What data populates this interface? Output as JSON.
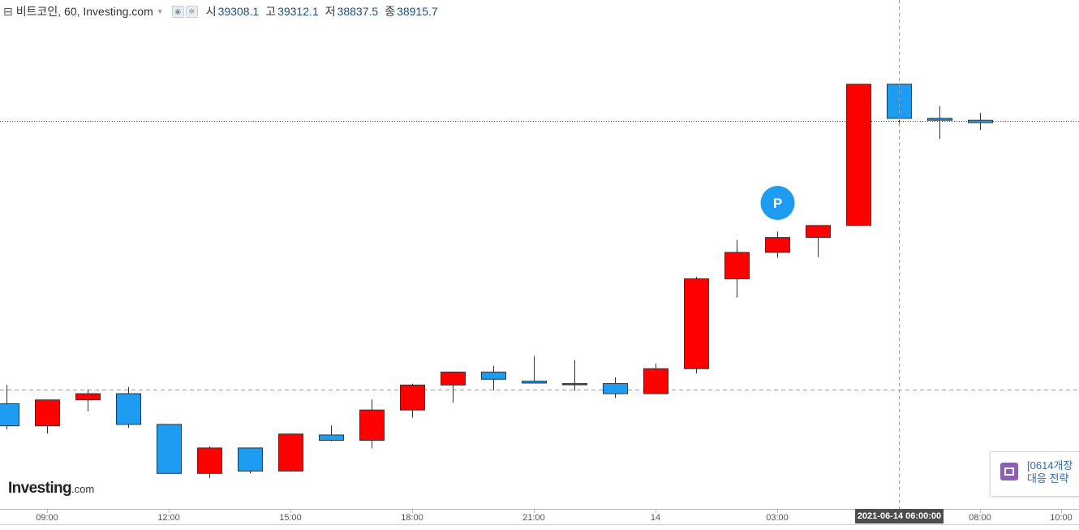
{
  "header": {
    "toggle_icon": "collapse-square-icon",
    "title": "비트코인, 60, Investing.com",
    "ohlc": [
      {
        "label": "시",
        "value": "39308.1"
      },
      {
        "label": "고",
        "value": "39312.1"
      },
      {
        "label": "저",
        "value": "38837.5"
      },
      {
        "label": "종",
        "value": "38915.7"
      }
    ]
  },
  "logo": {
    "brand": "Investing",
    "suffix": ".com"
  },
  "news": {
    "line1": "[0614개장",
    "line2": "대응 전략",
    "icon": "news-icon"
  },
  "crosshair": {
    "time_label": "2021-06-14 06:00:00"
  },
  "marker": {
    "label": "P"
  },
  "colors": {
    "up": "#ff0000",
    "down": "#1e9cf2",
    "wick": "#333333",
    "ref_line": "#1f4f9a",
    "marker_bg": "#1e9cf2"
  },
  "chart_data": {
    "type": "candlestick",
    "title": "비트코인, 60, Investing.com",
    "value_range_relative": [
      0,
      1
    ],
    "note_values": "Values are relative price levels (0 = chart bottom, 1 = chart top); the price axis is not shown in the image.",
    "x_ticks": [
      "09:00",
      "12:00",
      "15:00",
      "18:00",
      "21:00",
      "14",
      "03:00",
      "08:00",
      "10:00"
    ],
    "candles": [
      {
        "time": "08:00",
        "open": 0.207,
        "high": 0.246,
        "low": 0.154,
        "close": 0.161
      },
      {
        "time": "09:00",
        "open": 0.161,
        "high": 0.215,
        "low": 0.145,
        "close": 0.215
      },
      {
        "time": "10:00",
        "open": 0.215,
        "high": 0.237,
        "low": 0.191,
        "close": 0.228
      },
      {
        "time": "11:00",
        "open": 0.228,
        "high": 0.242,
        "low": 0.157,
        "close": 0.164
      },
      {
        "time": "12:00",
        "open": 0.164,
        "high": 0.164,
        "low": 0.062,
        "close": 0.062
      },
      {
        "time": "13:00",
        "open": 0.062,
        "high": 0.118,
        "low": 0.052,
        "close": 0.115
      },
      {
        "time": "14:00",
        "open": 0.115,
        "high": 0.115,
        "low": 0.062,
        "close": 0.067
      },
      {
        "time": "15:00",
        "open": 0.067,
        "high": 0.144,
        "low": 0.065,
        "close": 0.144
      },
      {
        "time": "16:00",
        "open": 0.142,
        "high": 0.162,
        "low": 0.129,
        "close": 0.131
      },
      {
        "time": "17:00",
        "open": 0.131,
        "high": 0.216,
        "low": 0.114,
        "close": 0.194
      },
      {
        "time": "18:00",
        "open": 0.194,
        "high": 0.249,
        "low": 0.178,
        "close": 0.246
      },
      {
        "time": "19:00",
        "open": 0.246,
        "high": 0.267,
        "low": 0.209,
        "close": 0.273
      },
      {
        "time": "20:00",
        "open": 0.273,
        "high": 0.286,
        "low": 0.235,
        "close": 0.258
      },
      {
        "time": "21:00",
        "open": 0.254,
        "high": 0.306,
        "low": 0.25,
        "close": 0.25
      },
      {
        "time": "22:00",
        "open": 0.249,
        "high": 0.298,
        "low": 0.234,
        "close": 0.249
      },
      {
        "time": "23:00",
        "open": 0.249,
        "high": 0.262,
        "low": 0.219,
        "close": 0.228
      },
      {
        "time": "14 00:00",
        "open": 0.228,
        "high": 0.291,
        "low": 0.228,
        "close": 0.28
      },
      {
        "time": "01:00",
        "open": 0.28,
        "high": 0.471,
        "low": 0.27,
        "close": 0.467
      },
      {
        "time": "02:00",
        "open": 0.467,
        "high": 0.548,
        "low": 0.428,
        "close": 0.522
      },
      {
        "time": "03:00",
        "open": 0.522,
        "high": 0.565,
        "low": 0.511,
        "close": 0.553
      },
      {
        "time": "04:00",
        "open": 0.553,
        "high": 0.579,
        "low": 0.512,
        "close": 0.578
      },
      {
        "time": "05:00",
        "open": 0.578,
        "high": 0.872,
        "low": 0.578,
        "close": 0.872
      },
      {
        "time": "06:00",
        "open": 0.872,
        "high": 0.872,
        "low": 0.791,
        "close": 0.801
      },
      {
        "time": "07:00",
        "open": 0.801,
        "high": 0.826,
        "low": 0.758,
        "close": 0.797
      },
      {
        "time": "08:00",
        "open": 0.797,
        "high": 0.812,
        "low": 0.777,
        "close": 0.792
      }
    ],
    "reference_lines": [
      {
        "style": "dotted",
        "level": 0.795
      },
      {
        "style": "dashed",
        "level": 0.236
      }
    ],
    "crosshair_time": "2021-06-14 06:00:00",
    "annotations": [
      {
        "text": "P",
        "at": "03:00",
        "level": 0.625
      }
    ],
    "grid": false
  }
}
